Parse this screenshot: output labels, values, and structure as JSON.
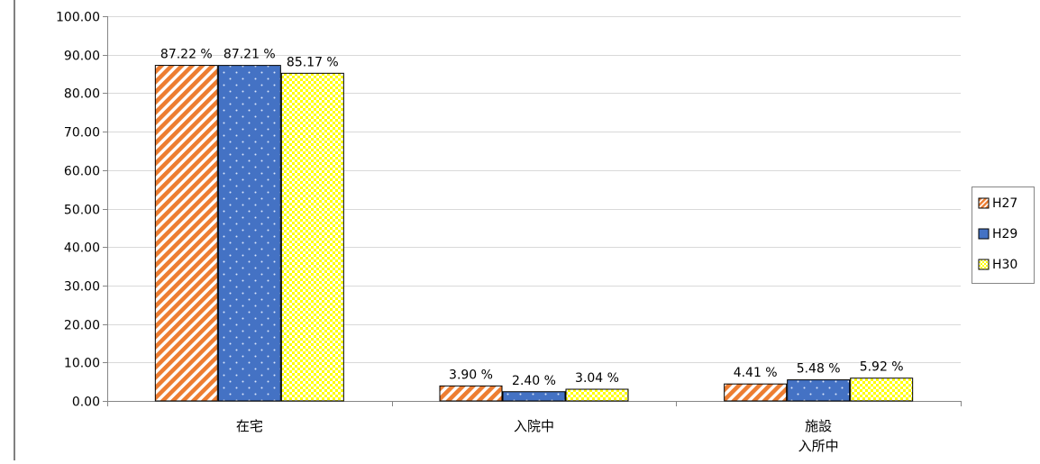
{
  "chart_data": {
    "type": "bar",
    "categories": [
      "在宅",
      "入院中",
      "施設\n入所中"
    ],
    "series": [
      {
        "name": "H27",
        "values": [
          87.22,
          3.9,
          4.41
        ],
        "labels": [
          "87.22 %",
          "3.90 %",
          "4.41 %"
        ],
        "color": "#ED7D31",
        "pattern": "diagonal-stripes"
      },
      {
        "name": "H29",
        "values": [
          87.21,
          2.4,
          5.48
        ],
        "labels": [
          "87.21 %",
          "2.40 %",
          "5.48 %"
        ],
        "color": "#4472C4",
        "pattern": "dots"
      },
      {
        "name": "H30",
        "values": [
          85.17,
          3.04,
          5.92
        ],
        "labels": [
          "85.17 %",
          "3.04 %",
          "5.92 %"
        ],
        "color": "#FFFF00",
        "pattern": "checker"
      }
    ],
    "ylim": [
      0,
      100
    ],
    "yticks": [
      "0.00",
      "10.00",
      "20.00",
      "30.00",
      "40.00",
      "50.00",
      "60.00",
      "70.00",
      "80.00",
      "90.00",
      "100.00"
    ],
    "grid": true,
    "legend": "right",
    "title": "",
    "xlabel": "",
    "ylabel": ""
  }
}
